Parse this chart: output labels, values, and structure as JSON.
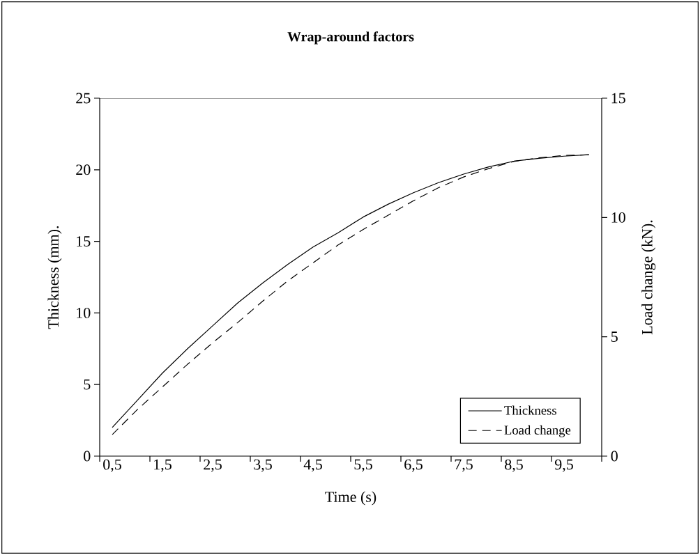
{
  "chart_data": {
    "type": "line",
    "title": "Wrap-around factors",
    "xlabel": "Time (s)",
    "ylabel": "Thickness (mm).",
    "y2label": "Load change (kN).",
    "x": [
      0.5,
      1,
      1.5,
      2,
      2.5,
      3,
      3.5,
      4,
      4.5,
      5,
      5.5,
      6,
      6.5,
      7,
      7.5,
      8,
      8.5,
      9,
      9.5,
      10
    ],
    "series": [
      {
        "name": "Thickness",
        "color": "#000000",
        "line_style": "solid",
        "values": [
          2.0,
          3.9,
          5.8,
          7.5,
          9.1,
          10.7,
          12.1,
          13.4,
          14.6,
          15.6,
          16.7,
          17.6,
          18.4,
          19.1,
          19.7,
          20.2,
          20.6,
          20.8,
          20.95,
          21.05
        ]
      },
      {
        "name": "Load change",
        "color": "#000000",
        "line_style": "dashed",
        "axis": "y2",
        "values": [
          0.9,
          1.95,
          2.9,
          3.85,
          4.75,
          5.6,
          6.5,
          7.35,
          8.1,
          8.85,
          9.5,
          10.1,
          10.7,
          11.25,
          11.7,
          12.05,
          12.35,
          12.5,
          12.6,
          12.63
        ]
      }
    ],
    "xlim": [
      0.25,
      10.25
    ],
    "xticks": [
      {
        "value": 0.25,
        "label": null
      },
      {
        "value": 0.5,
        "label": "0,5"
      },
      {
        "value": 1.25,
        "label": null
      },
      {
        "value": 1.5,
        "label": "1,5"
      },
      {
        "value": 2.25,
        "label": null
      },
      {
        "value": 2.5,
        "label": "2,5"
      },
      {
        "value": 3.25,
        "label": null
      },
      {
        "value": 3.5,
        "label": "3,5"
      },
      {
        "value": 4.25,
        "label": null
      },
      {
        "value": 4.5,
        "label": "4,5"
      },
      {
        "value": 5.25,
        "label": null
      },
      {
        "value": 5.5,
        "label": "5,5"
      },
      {
        "value": 6.25,
        "label": null
      },
      {
        "value": 6.5,
        "label": "6,5"
      },
      {
        "value": 7.25,
        "label": null
      },
      {
        "value": 7.5,
        "label": "7,5"
      },
      {
        "value": 8.25,
        "label": null
      },
      {
        "value": 8.5,
        "label": "8,5"
      },
      {
        "value": 9.25,
        "label": null
      },
      {
        "value": 9.5,
        "label": "9,5"
      },
      {
        "value": 10.25,
        "label": null
      }
    ],
    "ylim": [
      0,
      25
    ],
    "yticks": [
      0,
      5,
      10,
      15,
      20,
      25
    ],
    "y2lim": [
      0,
      15
    ],
    "y2ticks": [
      0,
      5,
      10,
      15
    ],
    "legend": "bottom right",
    "marker": "none"
  }
}
